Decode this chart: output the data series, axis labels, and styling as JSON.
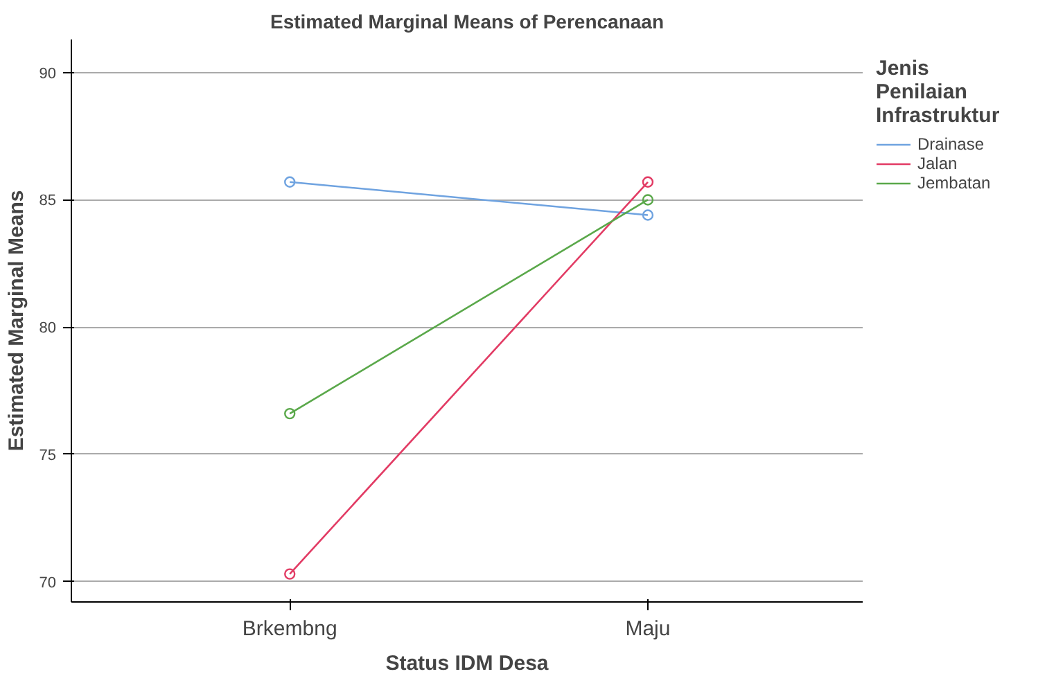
{
  "chart_data": {
    "type": "line",
    "title": "Estimated Marginal Means of Perencanaan",
    "xlabel": "Status IDM Desa",
    "ylabel": "Estimated Marginal Means",
    "legend_title": "Jenis Penilaian Infrastruktur",
    "categories": [
      "Brkembng",
      "Maju"
    ],
    "series": [
      {
        "name": "Drainase",
        "color": "#6fa3e0",
        "values": [
          85.7,
          84.4
        ]
      },
      {
        "name": "Jalan",
        "color": "#e23b64",
        "values": [
          70.3,
          85.7
        ]
      },
      {
        "name": "Jembatan",
        "color": "#5aa84a",
        "values": [
          76.6,
          85.0
        ]
      }
    ],
    "ylim": [
      69.2,
      91.3
    ],
    "yticks": [
      70,
      75,
      80,
      85,
      90
    ],
    "grid": "y",
    "legend": "right",
    "marker": "circle",
    "line_style": "solid"
  }
}
